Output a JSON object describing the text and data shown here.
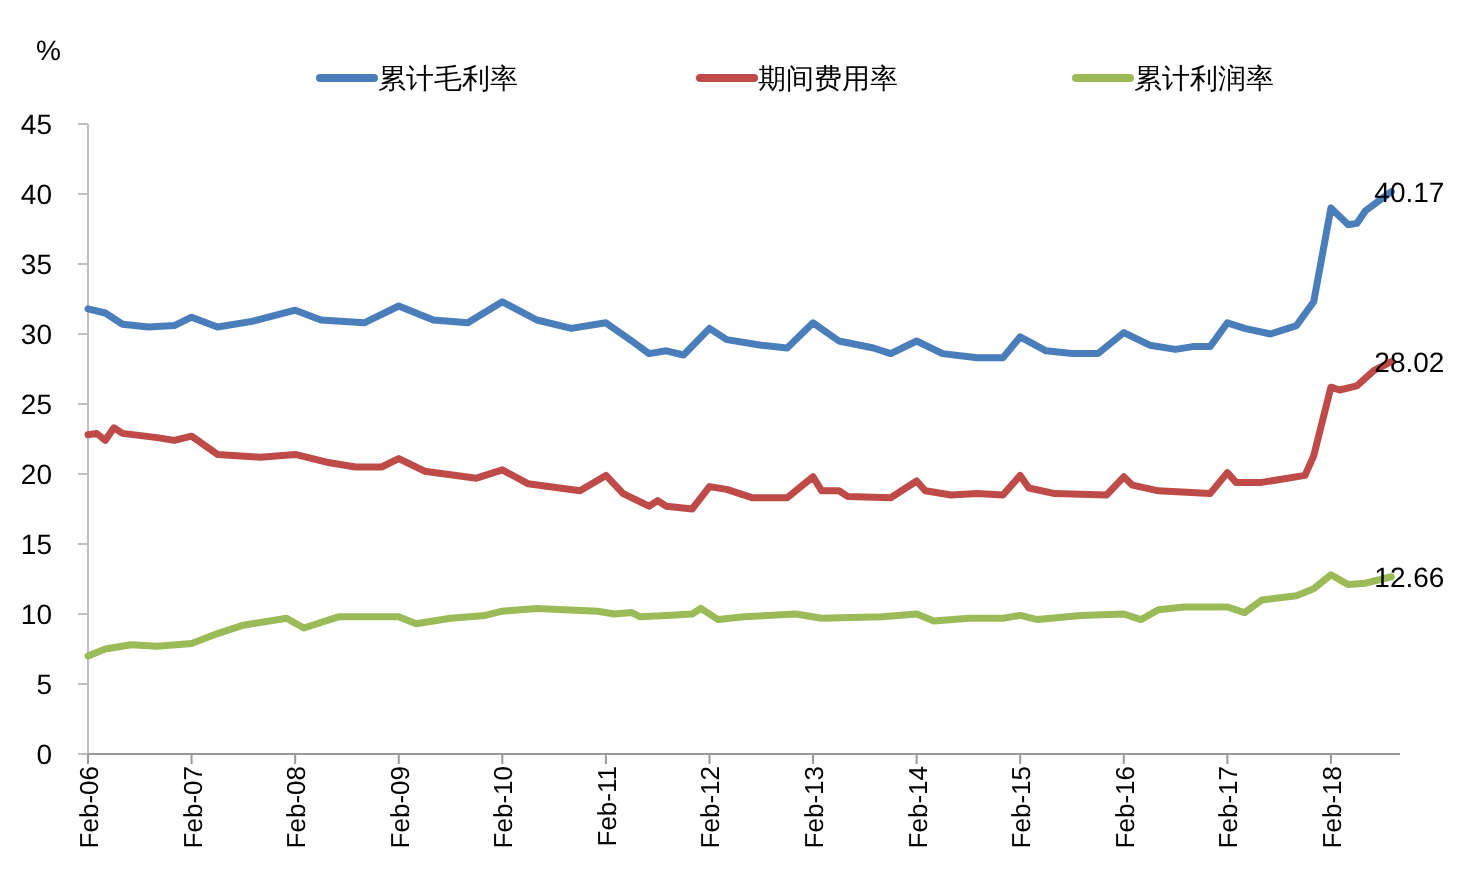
{
  "chart_data": {
    "type": "line",
    "ylabel": "%",
    "legend": "top",
    "grid": false,
    "line_style": "solid",
    "marker": "none",
    "xlim": [
      "2006-02",
      "2018-10"
    ],
    "xticks": [
      {
        "value": "2006-02",
        "label": "Feb-06"
      },
      {
        "value": "2007-02",
        "label": "Feb-07"
      },
      {
        "value": "2008-02",
        "label": "Feb-08"
      },
      {
        "value": "2009-02",
        "label": "Feb-09"
      },
      {
        "value": "2010-02",
        "label": "Feb-10"
      },
      {
        "value": "2011-02",
        "label": "Feb-11"
      },
      {
        "value": "2012-02",
        "label": "Feb-12"
      },
      {
        "value": "2013-02",
        "label": "Feb-13"
      },
      {
        "value": "2014-02",
        "label": "Feb-14"
      },
      {
        "value": "2015-02",
        "label": "Feb-15"
      },
      {
        "value": "2016-02",
        "label": "Feb-16"
      },
      {
        "value": "2017-02",
        "label": "Feb-17"
      },
      {
        "value": "2018-02",
        "label": "Feb-18"
      }
    ],
    "ylim": [
      0,
      45
    ],
    "yticks": [
      0,
      5,
      10,
      15,
      20,
      25,
      30,
      35,
      40,
      45
    ],
    "series": [
      {
        "name": "累计毛利率",
        "color": "#4a7ebb",
        "x": [
          "2006-02",
          "2006-04",
          "2006-06",
          "2006-09",
          "2006-12",
          "2007-02",
          "2007-05",
          "2007-09",
          "2008-02",
          "2008-05",
          "2008-10",
          "2009-02",
          "2009-06",
          "2009-10",
          "2010-02",
          "2010-06",
          "2010-10",
          "2011-02",
          "2011-05",
          "2011-07",
          "2011-09",
          "2011-11",
          "2012-02",
          "2012-04",
          "2012-08",
          "2012-11",
          "2013-02",
          "2013-05",
          "2013-09",
          "2013-11",
          "2014-02",
          "2014-05",
          "2014-09",
          "2014-12",
          "2015-02",
          "2015-05",
          "2015-08",
          "2015-11",
          "2016-02",
          "2016-05",
          "2016-08",
          "2016-10",
          "2016-12",
          "2017-02",
          "2017-04",
          "2017-07",
          "2017-10",
          "2017-12",
          "2018-02",
          "2018-04",
          "2018-05",
          "2018-06",
          "2018-09"
        ],
        "values": [
          31.8,
          31.5,
          30.7,
          30.5,
          30.6,
          31.2,
          30.5,
          30.9,
          31.7,
          31.0,
          30.8,
          32.0,
          31.0,
          30.8,
          32.3,
          31.0,
          30.4,
          30.8,
          29.5,
          28.6,
          28.8,
          28.5,
          30.4,
          29.6,
          29.2,
          29.0,
          30.8,
          29.5,
          29.0,
          28.6,
          29.5,
          28.6,
          28.3,
          28.3,
          29.8,
          28.8,
          28.6,
          28.6,
          30.1,
          29.2,
          28.9,
          29.1,
          29.1,
          30.8,
          30.4,
          30.0,
          30.6,
          32.3,
          39.0,
          37.8,
          37.9,
          38.8,
          40.17
        ]
      },
      {
        "name": "期间费用率",
        "color": "#be4b48",
        "x": [
          "2006-02",
          "2006-03",
          "2006-04",
          "2006-05",
          "2006-06",
          "2006-10",
          "2006-12",
          "2007-02",
          "2007-05",
          "2007-10",
          "2008-02",
          "2008-06",
          "2008-09",
          "2008-12",
          "2009-02",
          "2009-05",
          "2009-11",
          "2010-02",
          "2010-05",
          "2010-11",
          "2011-02",
          "2011-04",
          "2011-07",
          "2011-08",
          "2011-09",
          "2011-12",
          "2012-02",
          "2012-04",
          "2012-07",
          "2012-11",
          "2013-02",
          "2013-03",
          "2013-05",
          "2013-06",
          "2013-11",
          "2014-02",
          "2014-03",
          "2014-06",
          "2014-09",
          "2014-12",
          "2015-02",
          "2015-03",
          "2015-06",
          "2015-12",
          "2016-02",
          "2016-03",
          "2016-06",
          "2016-12",
          "2017-02",
          "2017-03",
          "2017-06",
          "2017-11",
          "2017-12",
          "2018-02",
          "2018-03",
          "2018-05",
          "2018-07",
          "2018-09"
        ],
        "values": [
          22.8,
          22.9,
          22.4,
          23.3,
          22.9,
          22.6,
          22.4,
          22.7,
          21.4,
          21.2,
          21.4,
          20.8,
          20.5,
          20.5,
          21.1,
          20.2,
          19.7,
          20.3,
          19.3,
          18.8,
          19.9,
          18.6,
          17.7,
          18.1,
          17.7,
          17.5,
          19.1,
          18.9,
          18.3,
          18.3,
          19.8,
          18.8,
          18.8,
          18.4,
          18.3,
          19.5,
          18.8,
          18.5,
          18.6,
          18.5,
          19.9,
          19.0,
          18.6,
          18.5,
          19.8,
          19.2,
          18.8,
          18.6,
          20.1,
          19.4,
          19.4,
          19.9,
          21.3,
          26.2,
          26.0,
          26.3,
          27.4,
          28.02
        ]
      },
      {
        "name": "累计利润率",
        "color": "#9bbb59",
        "x": [
          "2006-02",
          "2006-04",
          "2006-07",
          "2006-10",
          "2007-02",
          "2007-05",
          "2007-08",
          "2008-01",
          "2008-03",
          "2008-07",
          "2009-02",
          "2009-04",
          "2009-08",
          "2009-12",
          "2010-02",
          "2010-06",
          "2011-01",
          "2011-03",
          "2011-05",
          "2011-06",
          "2011-09",
          "2011-12",
          "2012-01",
          "2012-03",
          "2012-06",
          "2012-12",
          "2013-03",
          "2013-10",
          "2014-02",
          "2014-04",
          "2014-08",
          "2014-12",
          "2015-02",
          "2015-04",
          "2015-09",
          "2016-02",
          "2016-04",
          "2016-06",
          "2016-09",
          "2017-02",
          "2017-04",
          "2017-06",
          "2017-10",
          "2017-12",
          "2018-02",
          "2018-04",
          "2018-06",
          "2018-09"
        ],
        "values": [
          7.0,
          7.5,
          7.8,
          7.7,
          7.9,
          8.6,
          9.2,
          9.7,
          9.0,
          9.8,
          9.8,
          9.3,
          9.7,
          9.9,
          10.2,
          10.4,
          10.2,
          10.0,
          10.1,
          9.8,
          9.9,
          10.0,
          10.4,
          9.6,
          9.8,
          10.0,
          9.7,
          9.8,
          10.0,
          9.5,
          9.7,
          9.7,
          9.9,
          9.6,
          9.9,
          10.0,
          9.6,
          10.3,
          10.5,
          10.5,
          10.1,
          11.0,
          11.3,
          11.8,
          12.8,
          12.1,
          12.2,
          12.66
        ]
      }
    ],
    "annotations": [
      {
        "text": "40.17",
        "x": "2018-09",
        "y": 40.17
      },
      {
        "text": "28.02",
        "x": "2018-09",
        "y": 28.02
      },
      {
        "text": "12.66",
        "x": "2018-09",
        "y": 12.66
      }
    ]
  }
}
